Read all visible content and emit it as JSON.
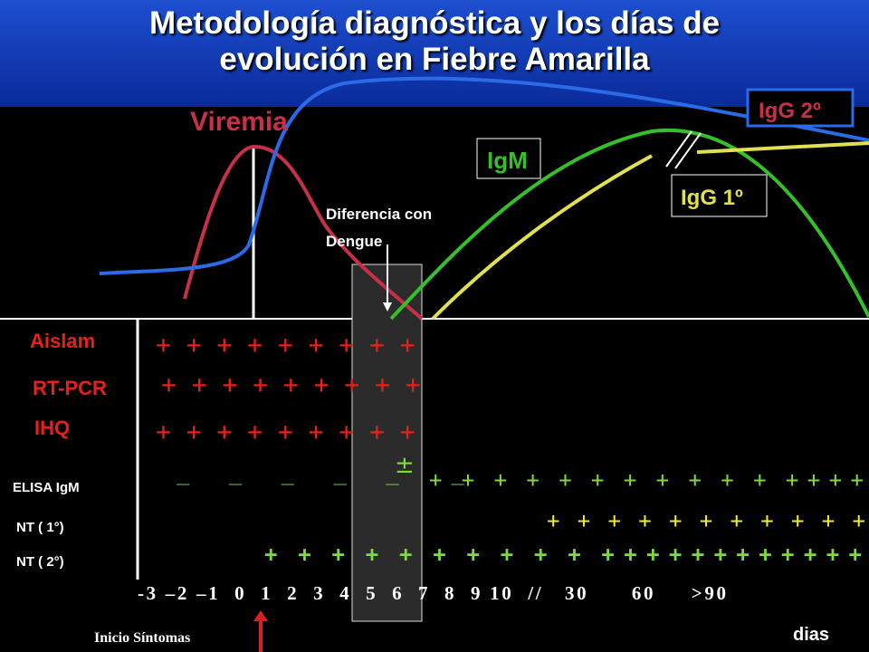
{
  "title_line1": "Metodología diagnóstica  y los días de",
  "title_line2": "evolución en Fiebre Amarilla",
  "curves": {
    "viremia": "Viremia",
    "igm": "IgM",
    "igg1": "IgG 1º",
    "igg2": "IgG 2º"
  },
  "annotation": "Diferencia con\nDengue",
  "rows": {
    "aislam": {
      "label": "Aislam",
      "marks": "+ + + + + + + + +"
    },
    "rtpcr": {
      "label": "RT-PCR",
      "marks": "+ + + + + + + + +"
    },
    "ihq": {
      "label": "IHQ",
      "marks": "+ + + + + + + + +"
    },
    "elisa": {
      "label": "ELISA IgM",
      "minus": "_   _   _   _   _    _",
      "pm": "±",
      "marks": "+  +  +  +  +  +  +  +  +  +  +  + + + +"
    },
    "nt1": {
      "label": "NT ( 1°)",
      "marks": "+  +  +  +  +  +  +  +  +  +  +"
    },
    "nt2": {
      "label": "NT ( 2°)",
      "marks": "+  +  +  +  +  +  +  +  +  +  + + + + + + + + + + + +"
    }
  },
  "axis_label": "-3 –2 –1  0  1  2  3  4  5  6  7  8  9 10  //   30      60     >90",
  "onset_label": "Inicio Síntomas",
  "days_label": "dias",
  "colors": {
    "viremia": "#c8304a",
    "blue_curve": "#2a6be8",
    "igm": "#35c02a",
    "igg1": "#e0e050",
    "green_marks": "#7ddc3a",
    "yellow_marks": "#f0f020",
    "red_marks": "#e8201a"
  }
}
